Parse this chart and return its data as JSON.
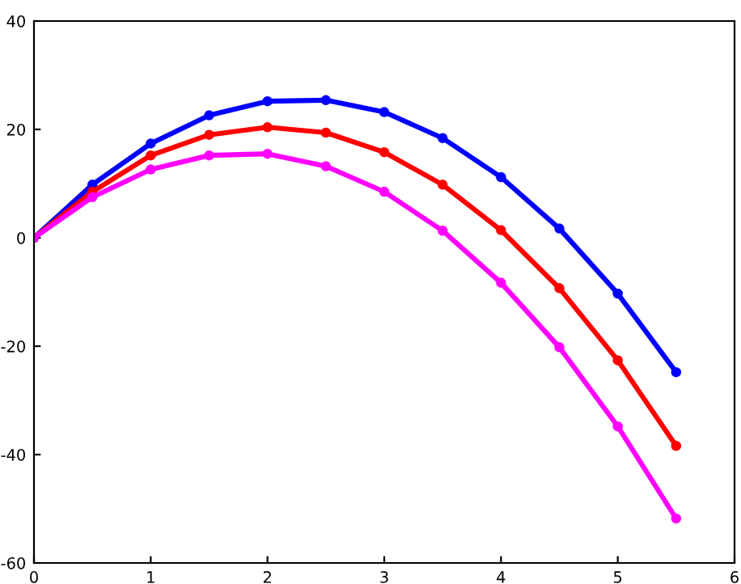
{
  "chart_data": {
    "type": "line",
    "x": [
      0,
      0.5,
      1,
      1.5,
      2,
      2.5,
      3,
      3.5,
      4,
      4.5,
      5,
      5.5
    ],
    "series": [
      {
        "color": "#0000ff",
        "values": [
          0,
          9.8,
          17.4,
          22.6,
          25.2,
          25.4,
          23.2,
          18.4,
          11.2,
          1.7,
          -10.3,
          -24.8
        ]
      },
      {
        "color": "#ff0000",
        "values": [
          0,
          8.5,
          15.2,
          19.0,
          20.4,
          19.4,
          15.8,
          9.8,
          1.4,
          -9.3,
          -22.6,
          -38.4
        ]
      },
      {
        "color": "#ff00ff",
        "values": [
          0,
          7.5,
          12.6,
          15.2,
          15.5,
          13.2,
          8.5,
          1.3,
          -8.3,
          -20.2,
          -34.8,
          -51.8
        ]
      }
    ],
    "xlim": [
      0,
      6
    ],
    "xticks": [
      0,
      1,
      2,
      3,
      4,
      5,
      6
    ],
    "ylim": [
      -60,
      40
    ],
    "yticks": [
      -60,
      -40,
      -20,
      0,
      20,
      40
    ],
    "grid": false,
    "legend": false,
    "marker": "circle",
    "line_style": "solid"
  }
}
